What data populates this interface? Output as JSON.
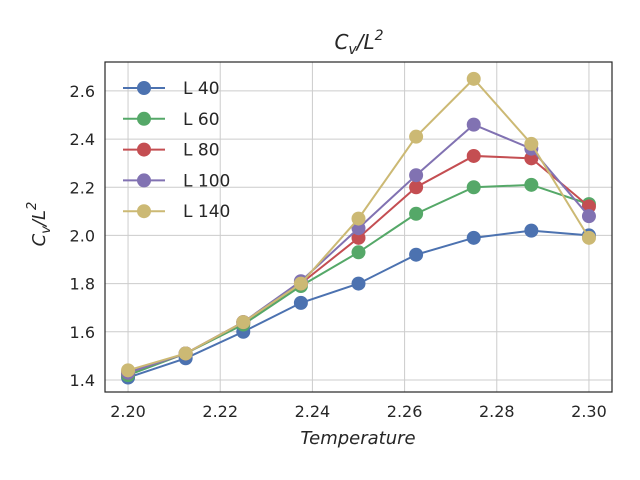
{
  "chart_data": {
    "type": "line",
    "title_main": "C",
    "title_sub": "v",
    "title_rest": "/L",
    "title_sup": "2",
    "xlabel": "Temperature",
    "ylabel_main": "C",
    "ylabel_sub": "v",
    "ylabel_rest": "/L",
    "ylabel_sup": "2",
    "xlim": [
      2.195,
      2.305
    ],
    "ylim": [
      1.35,
      2.72
    ],
    "xticks": [
      2.2,
      2.22,
      2.24,
      2.26,
      2.28,
      2.3
    ],
    "xtick_labels": [
      "2.20",
      "2.22",
      "2.24",
      "2.26",
      "2.28",
      "2.30"
    ],
    "yticks": [
      1.4,
      1.6,
      1.8,
      2.0,
      2.2,
      2.4,
      2.6
    ],
    "ytick_labels": [
      "1.4",
      "1.6",
      "1.8",
      "2.0",
      "2.2",
      "2.4",
      "2.6"
    ],
    "grid": true,
    "legend_position": "top-left",
    "x": [
      2.2,
      2.2125,
      2.225,
      2.2375,
      2.25,
      2.2625,
      2.275,
      2.2875,
      2.3
    ],
    "series": [
      {
        "name": "L 40",
        "color": "#4c72b0",
        "values": [
          1.41,
          1.49,
          1.6,
          1.72,
          1.8,
          1.92,
          1.99,
          2.02,
          2.0
        ]
      },
      {
        "name": "L 60",
        "color": "#55a868",
        "values": [
          1.42,
          1.51,
          1.63,
          1.79,
          1.93,
          2.09,
          2.2,
          2.21,
          2.13
        ]
      },
      {
        "name": "L 80",
        "color": "#c44e52",
        "values": [
          1.43,
          1.51,
          1.64,
          1.8,
          1.99,
          2.2,
          2.33,
          2.32,
          2.12
        ]
      },
      {
        "name": "L 100",
        "color": "#8172b2",
        "values": [
          1.43,
          1.51,
          1.64,
          1.81,
          2.03,
          2.25,
          2.46,
          2.36,
          2.08
        ]
      },
      {
        "name": "L 140",
        "color": "#ccb974",
        "values": [
          1.44,
          1.51,
          1.64,
          1.8,
          2.07,
          2.41,
          2.65,
          2.38,
          1.99
        ]
      }
    ]
  }
}
